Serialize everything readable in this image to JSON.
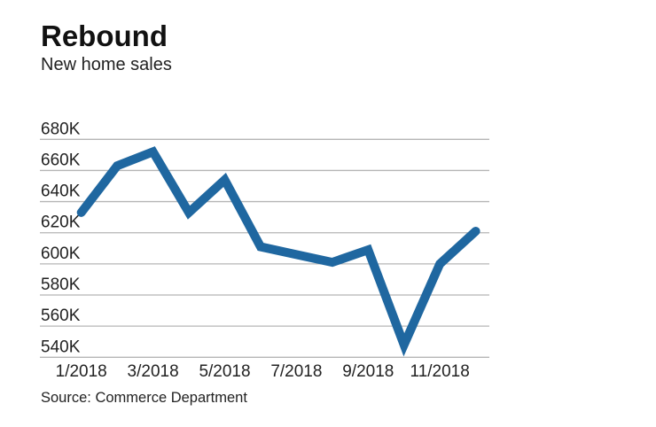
{
  "chart_data": {
    "type": "line",
    "title": "Rebound",
    "subtitle": "New home sales",
    "source": "Source: Commerce Department",
    "x": [
      "1/2018",
      "2/2018",
      "3/2018",
      "4/2018",
      "5/2018",
      "6/2018",
      "7/2018",
      "8/2018",
      "9/2018",
      "10/2018",
      "11/2018",
      "12/2018"
    ],
    "x_tick_labels": [
      "1/2018",
      "3/2018",
      "5/2018",
      "7/2018",
      "9/2018",
      "11/2018"
    ],
    "values": [
      633,
      663,
      672,
      633,
      654,
      611,
      606,
      601,
      609,
      548,
      600,
      621
    ],
    "unit": "K",
    "y_tick_labels": [
      "680K",
      "660K",
      "640K",
      "620K",
      "600K",
      "580K",
      "560K",
      "540K"
    ],
    "ylim": [
      540,
      680
    ],
    "grid": true,
    "line_color": "#1f67a0"
  }
}
